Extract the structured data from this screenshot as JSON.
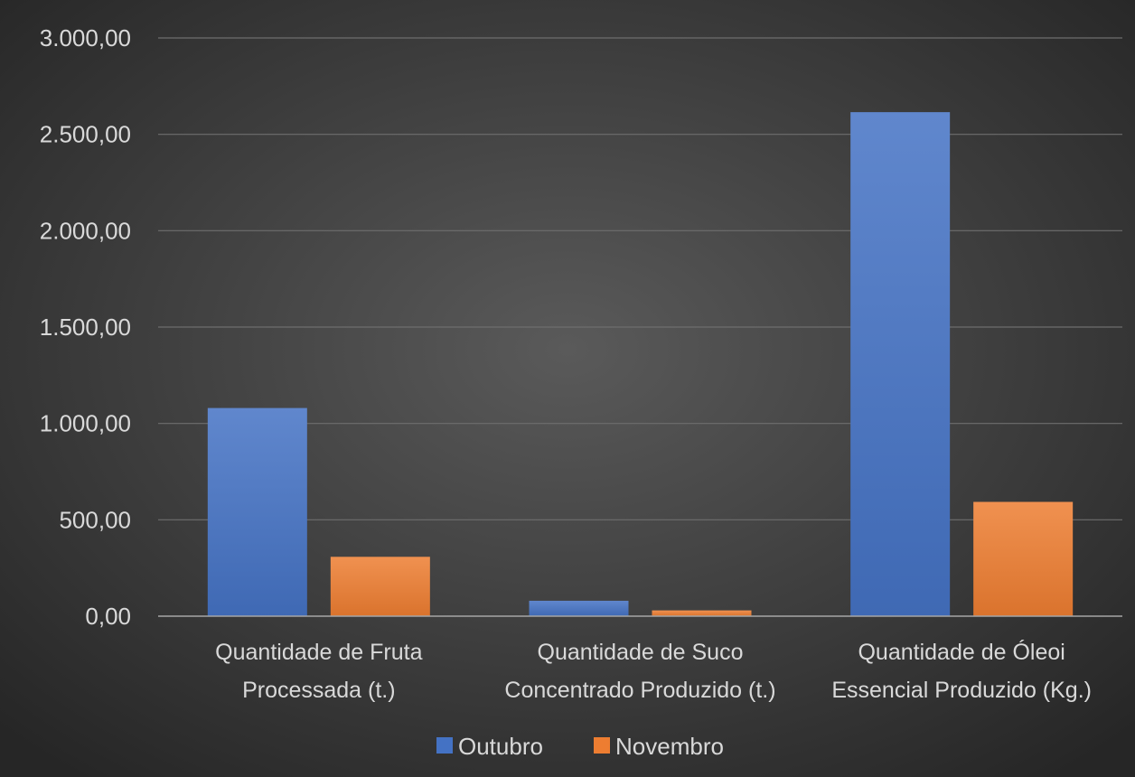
{
  "chart_data": {
    "type": "bar",
    "categories": [
      [
        "Quantidade de Fruta",
        "Processada (t.)"
      ],
      [
        "Quantidade de Suco",
        "Concentrado Produzido (t.)"
      ],
      [
        "Quantidade de Óleoi",
        "Essencial Produzido (Kg.)"
      ]
    ],
    "series": [
      {
        "name": "Outubro",
        "color": "#4472c4",
        "values": [
          1080,
          80,
          2615
        ]
      },
      {
        "name": "Novembro",
        "color": "#ed7d31",
        "values": [
          308,
          30,
          593
        ]
      }
    ],
    "ylim": [
      0,
      3000
    ],
    "yticks": [
      {
        "value": 0,
        "label": "0,00"
      },
      {
        "value": 500,
        "label": "500,00"
      },
      {
        "value": 1000,
        "label": "1.000,00"
      },
      {
        "value": 1500,
        "label": "1.500,00"
      },
      {
        "value": 2000,
        "label": "2.000,00"
      },
      {
        "value": 2500,
        "label": "2.500,00"
      },
      {
        "value": 3000,
        "label": "3.000,00"
      }
    ],
    "grid": true,
    "legend": "bottom",
    "background_colors": [
      "#5a5a5a",
      "#262626"
    ],
    "gridline_color": "#6e6e6e",
    "axis_color": "#a6a6a6",
    "text_color": "#d9d9d9"
  }
}
